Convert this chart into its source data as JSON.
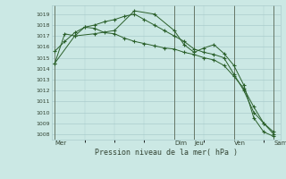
{
  "bg_color": "#cbe8e4",
  "grid_color": "#aacccc",
  "line_color": "#2a5f2a",
  "title": "Pression niveau de la mer( hPa )",
  "ylim": [
    1007.5,
    1019.8
  ],
  "yticks": [
    1008,
    1009,
    1010,
    1011,
    1012,
    1013,
    1014,
    1015,
    1016,
    1017,
    1018,
    1019
  ],
  "x_day_labels": [
    "Mer",
    "Dim",
    "Jeu",
    "Ven",
    "Sam"
  ],
  "x_day_positions": [
    0,
    18,
    21,
    27,
    33
  ],
  "xlim": [
    -0.5,
    34
  ],
  "series1": {
    "x": [
      0,
      1.5,
      3,
      4.5,
      6,
      7.5,
      9,
      10.5,
      12,
      13.5,
      15,
      16.5,
      18,
      19.5,
      21,
      22.5,
      24,
      25.5,
      27,
      28.5,
      30,
      31.5,
      33
    ],
    "y": [
      1014.5,
      1017.2,
      1017.0,
      1017.8,
      1017.7,
      1017.3,
      1017.2,
      1016.8,
      1016.5,
      1016.3,
      1016.1,
      1015.9,
      1015.8,
      1015.5,
      1015.3,
      1015.0,
      1014.8,
      1014.3,
      1013.3,
      1012.2,
      1010.5,
      1009.0,
      1008.0
    ]
  },
  "series2": {
    "x": [
      0,
      1.5,
      3,
      4.5,
      6,
      7.5,
      9,
      10.5,
      12,
      13.5,
      15,
      16.5,
      18,
      19.5,
      21,
      22.5,
      24,
      25.5,
      27,
      28.5,
      30,
      31.5,
      33
    ],
    "y": [
      1015.6,
      1016.5,
      1017.3,
      1017.8,
      1018.0,
      1018.3,
      1018.5,
      1018.8,
      1019.0,
      1018.5,
      1018.0,
      1017.5,
      1017.0,
      1016.5,
      1015.8,
      1015.5,
      1015.3,
      1015.0,
      1013.5,
      1012.0,
      1010.0,
      1009.0,
      1008.2
    ]
  },
  "series3": {
    "x": [
      0,
      3,
      6,
      9,
      12,
      15,
      18,
      19.5,
      21,
      22.5,
      24,
      25.5,
      27,
      28.5,
      30,
      31.5,
      33
    ],
    "y": [
      1014.5,
      1017.0,
      1017.2,
      1017.5,
      1019.3,
      1019.0,
      1017.5,
      1016.2,
      1015.5,
      1015.9,
      1016.2,
      1015.4,
      1014.3,
      1012.5,
      1009.5,
      1008.2,
      1007.8
    ]
  }
}
